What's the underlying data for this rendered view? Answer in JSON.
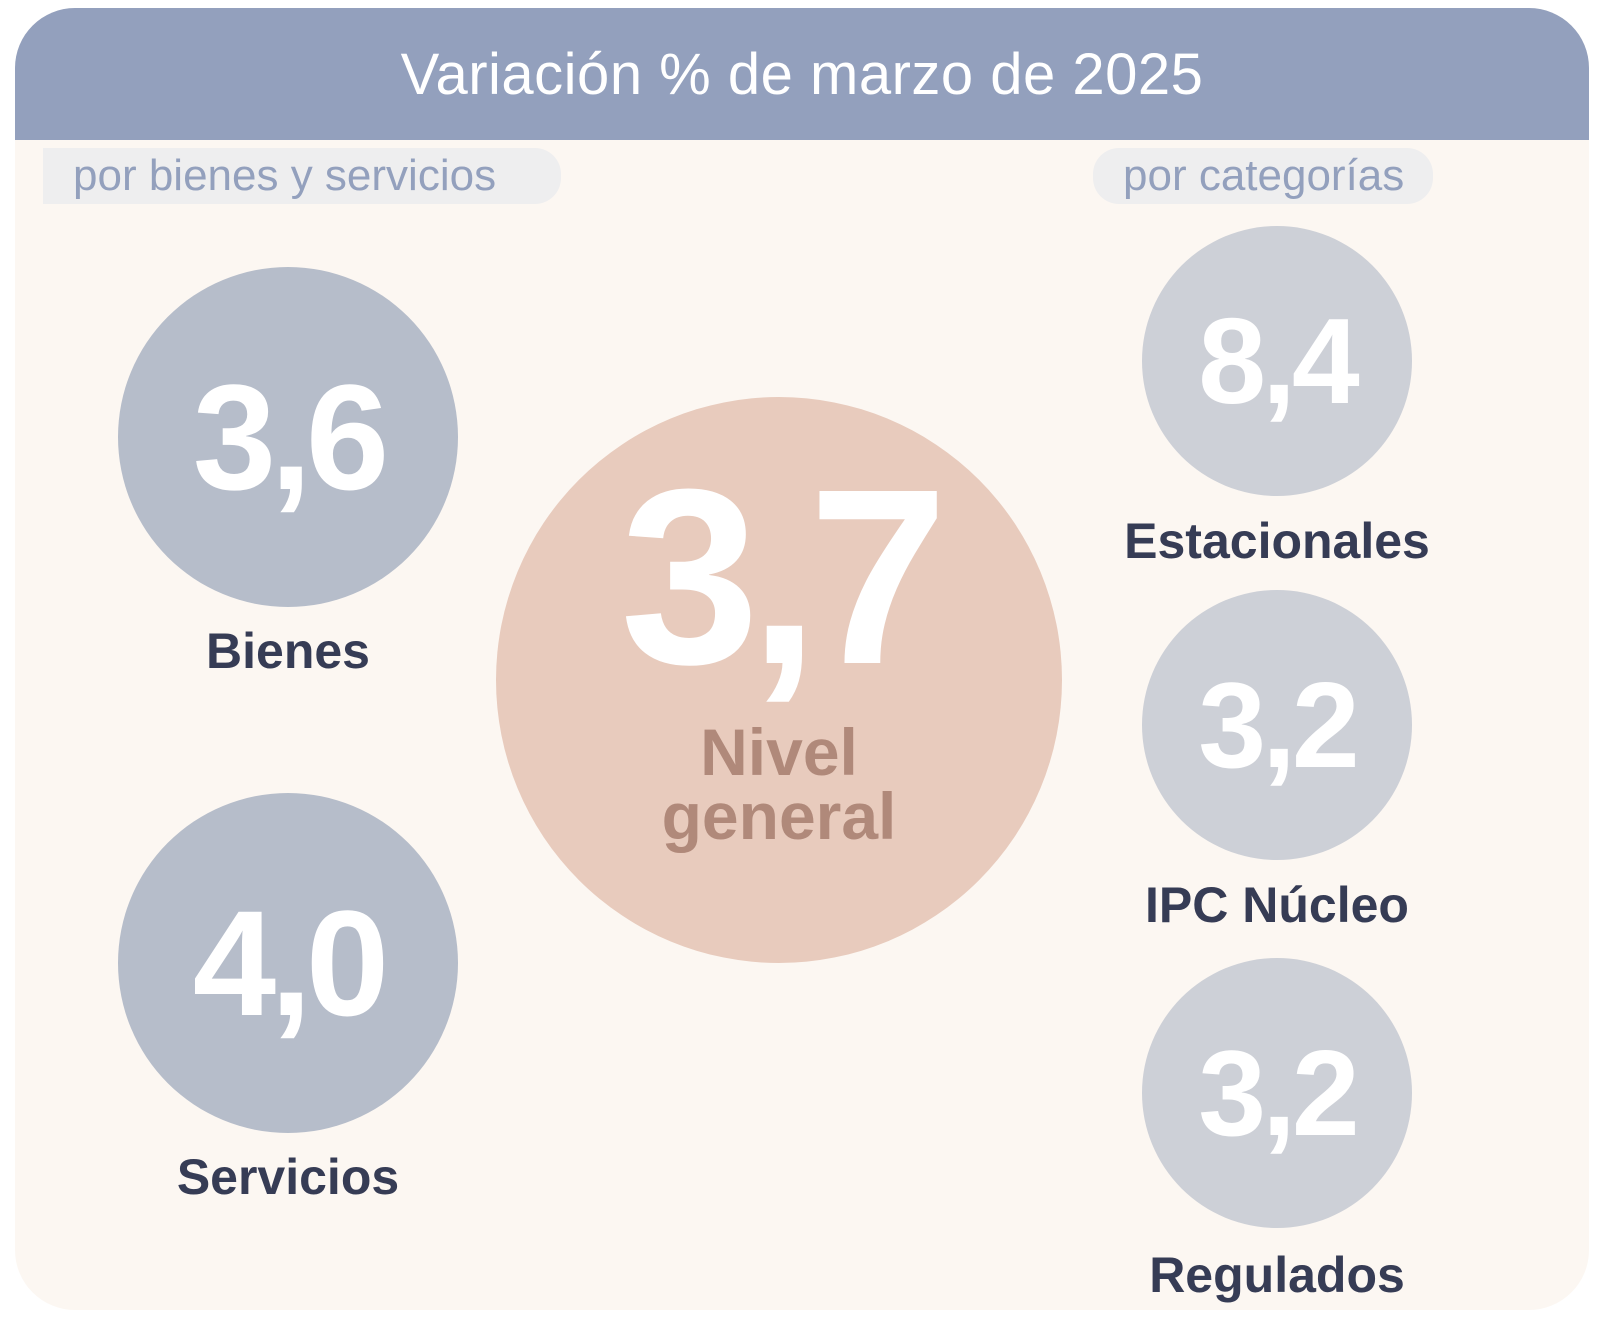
{
  "header": {
    "title": "Variación % de marzo de 2025"
  },
  "sections": {
    "left_label": "por bienes y servicios",
    "right_label": "por categorías"
  },
  "bienes_servicios": [
    {
      "value": "3,6",
      "label": "Bienes"
    },
    {
      "value": "4,0",
      "label": "Servicios"
    }
  ],
  "general": {
    "value": "3,7",
    "label": "Nivel general"
  },
  "categorias": [
    {
      "value": "8,4",
      "label": "Estacionales"
    },
    {
      "value": "3,2",
      "label": "IPC Núcleo"
    },
    {
      "value": "3,2",
      "label": "Regulados"
    }
  ],
  "colors": {
    "header_bg": "#93a0bd",
    "card_bg": "#fcf7f2",
    "goods_services_circle": "#b6bdca",
    "general_circle": "#e8cbbd",
    "general_label": "#b0897a",
    "category_circle": "#cdd0d7",
    "label_text": "#363c55"
  }
}
